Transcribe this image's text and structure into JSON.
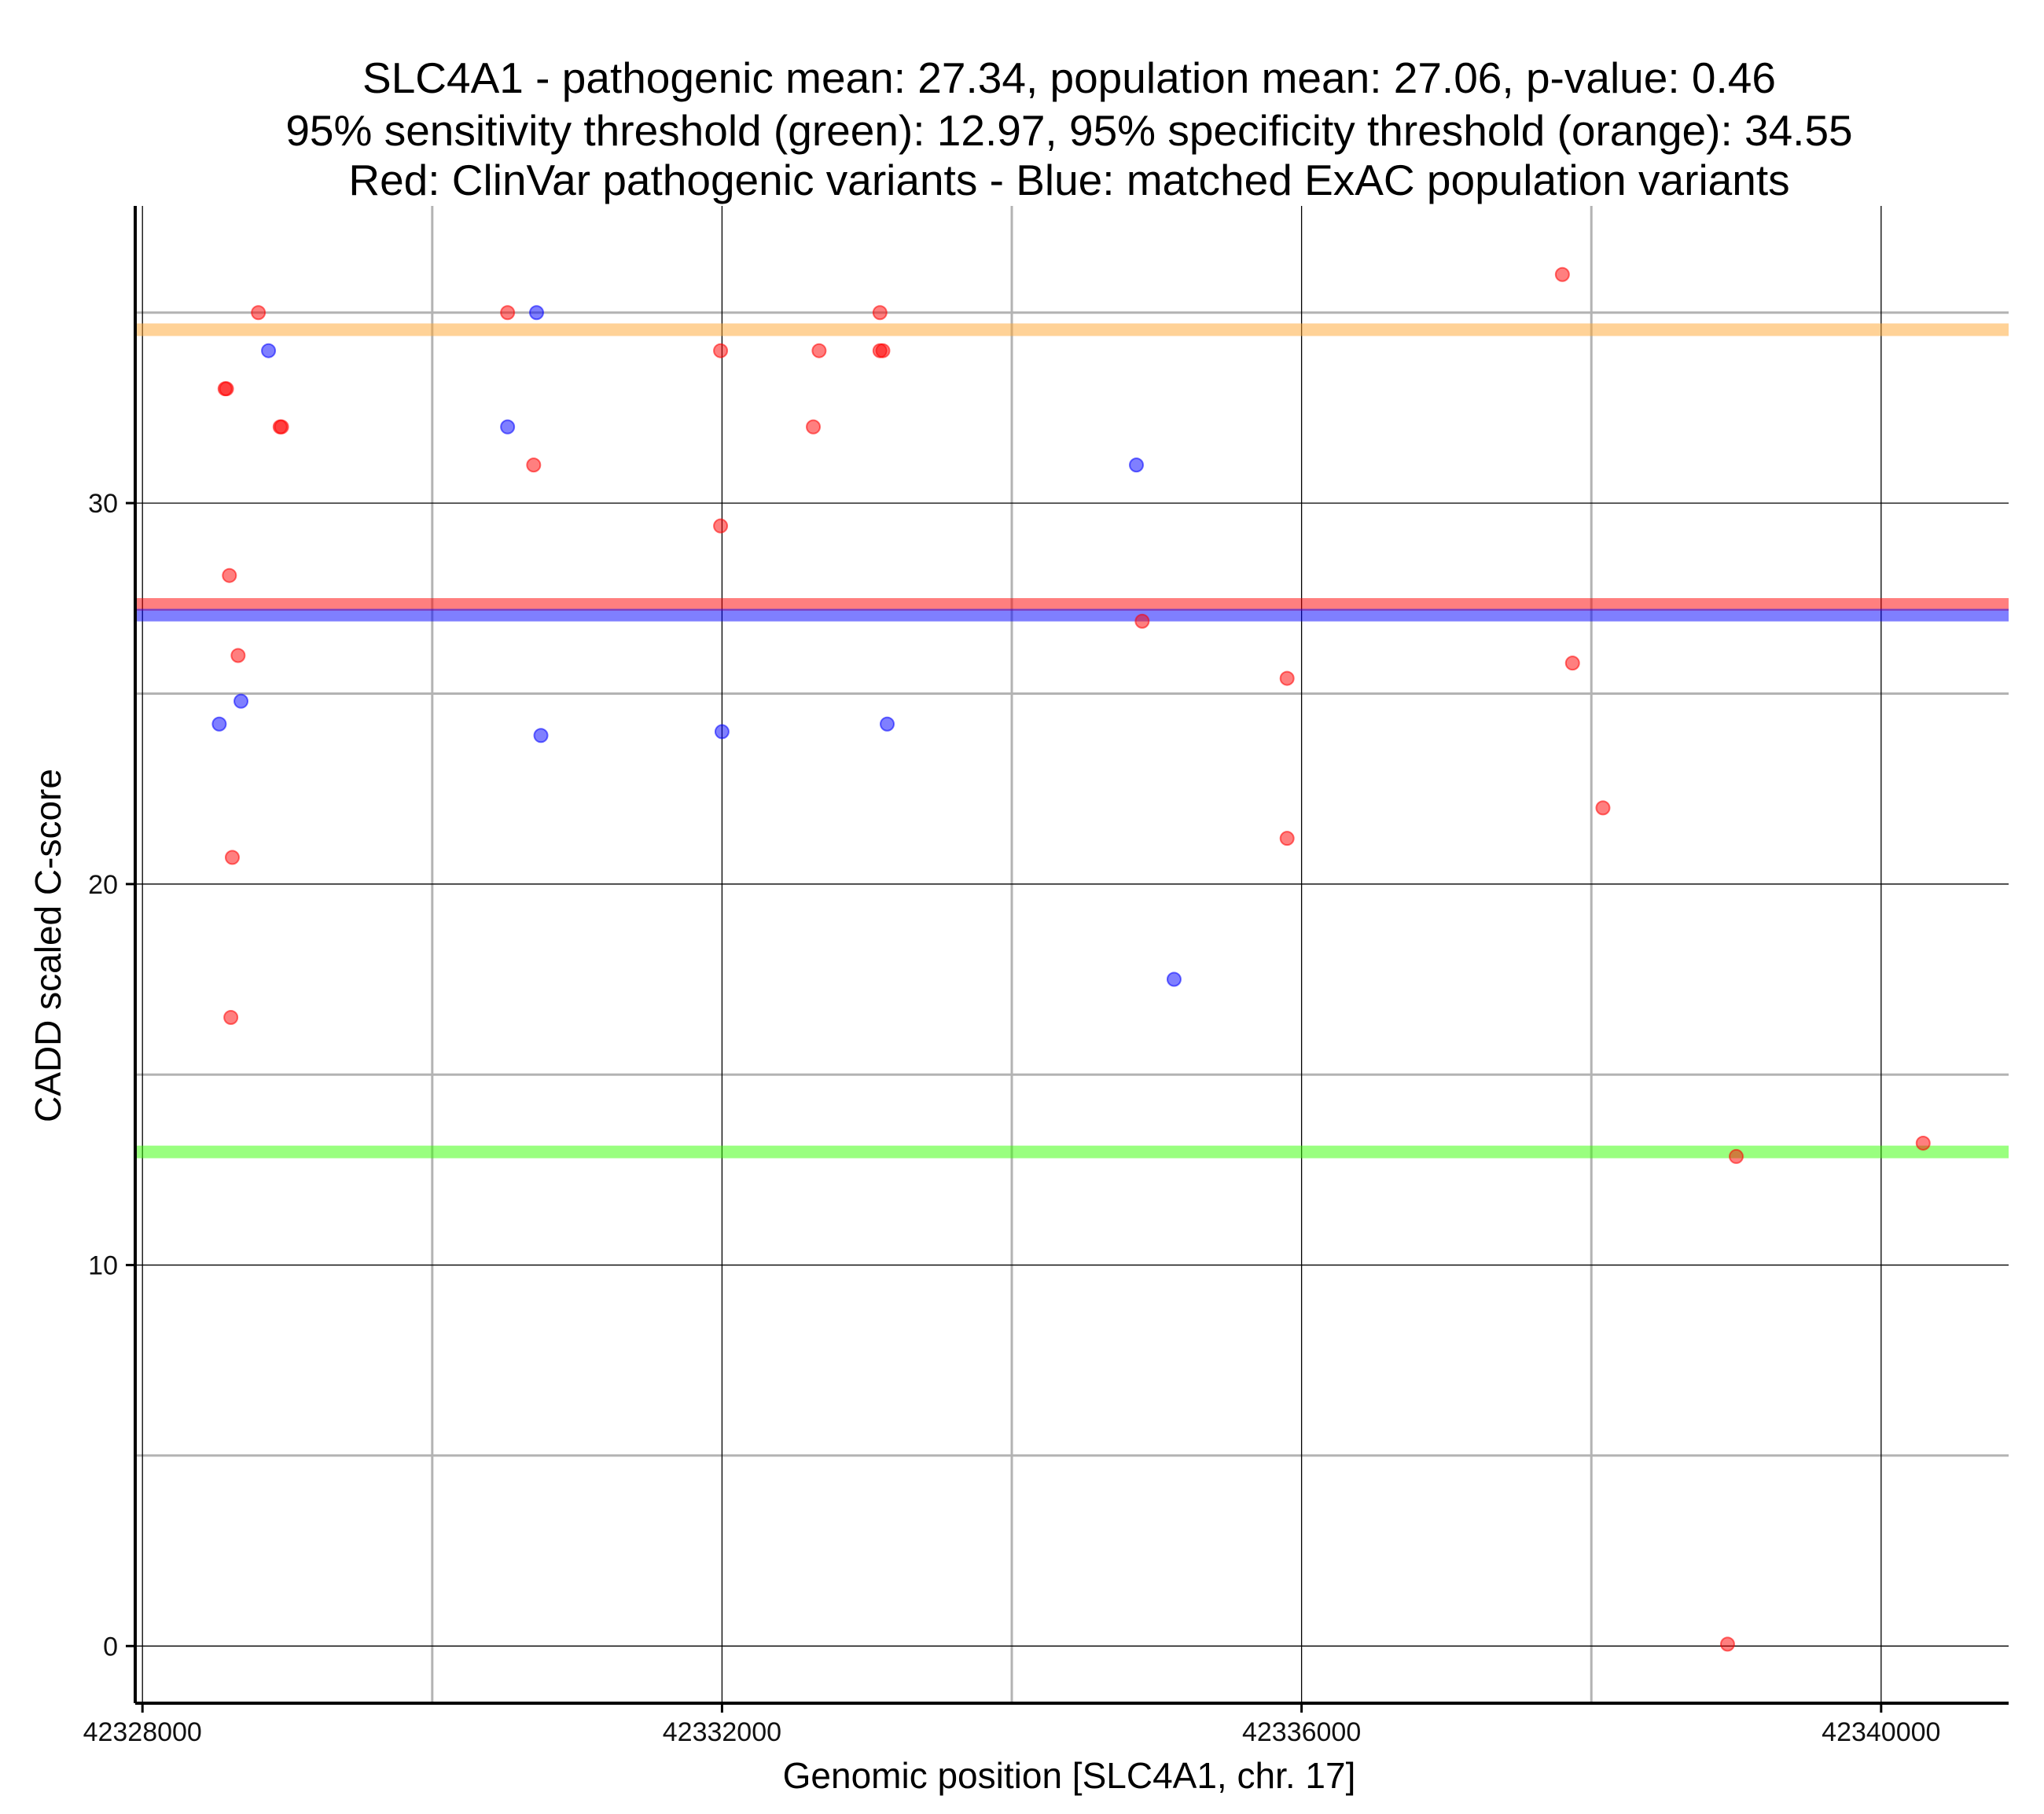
{
  "chart_data": {
    "type": "scatter",
    "title_lines": [
      "SLC4A1 - pathogenic mean: 27.34, population mean: 27.06, p-value: 0.46",
      "95% sensitivity threshold (green): 12.97, 95% specificity threshold (orange): 34.55",
      "Red: ClinVar pathogenic variants - Blue: matched ExAC population variants"
    ],
    "xlabel": "Genomic position [SLC4A1, chr. 17]",
    "ylabel": "CADD scaled C-score",
    "xlim": [
      42327950,
      42340880
    ],
    "ylim": [
      -1.5,
      37.8
    ],
    "x_major_ticks": [
      42328000,
      42332000,
      42336000,
      42340000
    ],
    "x_tick_labels": [
      "42328000",
      "42332000",
      "42336000",
      "42340000"
    ],
    "x_minor_grid": [
      42330000,
      42334000,
      42338000
    ],
    "y_major_ticks": [
      0,
      10,
      20,
      30
    ],
    "y_tick_labels": [
      "0",
      "10",
      "20",
      "30"
    ],
    "y_minor_grid": [
      5,
      15,
      25,
      35
    ],
    "grid": true,
    "hlines": [
      {
        "y": 34.55,
        "color": "#ffa630"
      },
      {
        "y": 27.34,
        "color": "#ff0000"
      },
      {
        "y": 27.06,
        "color": "#0000ff"
      },
      {
        "y": 12.97,
        "color": "#33ff00"
      }
    ],
    "series": [
      {
        "color": "#ff0000",
        "points": [
          [
            42328800,
            35
          ],
          [
            42328570,
            33
          ],
          [
            42328580,
            33
          ],
          [
            42328950,
            32
          ],
          [
            42328960,
            32
          ],
          [
            42328600,
            28.1
          ],
          [
            42328660,
            26
          ],
          [
            42328620,
            20.7
          ],
          [
            42328610,
            16.5
          ],
          [
            42330520,
            35
          ],
          [
            42330700,
            31
          ],
          [
            42331990,
            34
          ],
          [
            42332670,
            34
          ],
          [
            42332630,
            32
          ],
          [
            42333090,
            35
          ],
          [
            42333090,
            34
          ],
          [
            42333110,
            34
          ],
          [
            42331990,
            29.4
          ],
          [
            42334900,
            26.9
          ],
          [
            42335900,
            25.4
          ],
          [
            42335900,
            21.2
          ],
          [
            42337800,
            36
          ],
          [
            42337870,
            25.8
          ],
          [
            42338080,
            22
          ],
          [
            42339000,
            12.85
          ],
          [
            42340290,
            13.2
          ],
          [
            42338940,
            0.05
          ]
        ]
      },
      {
        "color": "#0000ff",
        "points": [
          [
            42328870,
            34
          ],
          [
            42330720,
            35
          ],
          [
            42330520,
            32
          ],
          [
            42334860,
            31
          ],
          [
            42328530,
            24.2
          ],
          [
            42328680,
            24.8
          ],
          [
            42330750,
            23.9
          ],
          [
            42332000,
            24
          ],
          [
            42333140,
            24.2
          ],
          [
            42335120,
            17.5
          ]
        ]
      }
    ]
  }
}
